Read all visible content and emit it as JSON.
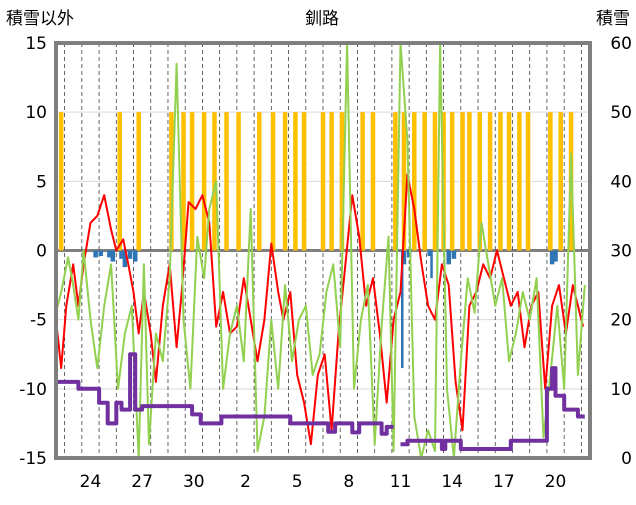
{
  "chart_data": {
    "type": "line",
    "title": "釧路",
    "left_axis": {
      "label": "積雪以外",
      "range": [
        -15,
        15
      ],
      "ticks": [
        "15",
        "10",
        "5",
        "0",
        "-5",
        "-10",
        "-15"
      ]
    },
    "right_axis": {
      "label": "積雪",
      "range": [
        0,
        60
      ],
      "ticks": [
        "60",
        "50",
        "40",
        "30",
        "20",
        "10",
        "0"
      ]
    },
    "x_range": [
      22,
      53
    ],
    "x_ticks": [
      {
        "x": 24,
        "label": "24"
      },
      {
        "x": 27,
        "label": "27"
      },
      {
        "x": 30,
        "label": "30"
      },
      {
        "x": 33,
        "label": "2"
      },
      {
        "x": 36,
        "label": "5"
      },
      {
        "x": 39,
        "label": "8"
      },
      {
        "x": 42,
        "label": "11"
      },
      {
        "x": 45,
        "label": "14"
      },
      {
        "x": 48,
        "label": "17"
      },
      {
        "x": 51,
        "label": "20"
      }
    ],
    "grid": {
      "horizontal_solid": true,
      "vertical_dashed": true
    },
    "colors": {
      "sunshine": "#ffc000",
      "precip": "#2e75b6",
      "temperature": "#ff0000",
      "wind": "#92d050",
      "snow_depth": "#7030a0",
      "frame": "#7f7f7f"
    },
    "series": [
      {
        "type": "bar",
        "axis": "left",
        "values": [
          [
            22.3,
            10
          ],
          [
            25.7,
            10
          ],
          [
            26.8,
            10
          ],
          [
            28.7,
            10
          ],
          [
            29.4,
            10
          ],
          [
            29.9,
            10
          ],
          [
            30.6,
            10
          ],
          [
            31.2,
            10
          ],
          [
            31.9,
            10
          ],
          [
            32.6,
            10
          ],
          [
            33.8,
            10
          ],
          [
            34.6,
            10
          ],
          [
            35.3,
            10
          ],
          [
            35.9,
            10
          ],
          [
            36.4,
            10
          ],
          [
            37.5,
            10
          ],
          [
            38.0,
            10
          ],
          [
            38.6,
            10
          ],
          [
            39.8,
            10
          ],
          [
            40.4,
            10
          ],
          [
            41.7,
            10
          ],
          [
            42.2,
            10
          ],
          [
            42.8,
            10
          ],
          [
            43.4,
            10
          ],
          [
            44.0,
            10
          ],
          [
            44.5,
            10
          ],
          [
            45.0,
            10
          ],
          [
            45.6,
            10
          ],
          [
            46.0,
            10
          ],
          [
            46.6,
            10
          ],
          [
            47.2,
            10
          ],
          [
            47.8,
            10
          ],
          [
            48.3,
            10
          ],
          [
            48.9,
            10
          ],
          [
            49.4,
            10
          ],
          [
            50.7,
            10
          ],
          [
            51.3,
            10
          ],
          [
            51.9,
            10
          ]
        ]
      },
      {
        "type": "bar",
        "axis": "left",
        "values": [
          [
            24.3,
            -0.5
          ],
          [
            24.6,
            -0.4
          ],
          [
            25.1,
            -0.5
          ],
          [
            25.3,
            -0.8
          ],
          [
            25.8,
            -0.6
          ],
          [
            26.0,
            -1.2
          ],
          [
            26.3,
            -0.6
          ],
          [
            26.6,
            -0.8
          ],
          [
            42.2,
            -1
          ],
          [
            42.5,
            -0.5
          ],
          [
            43.7,
            -0.4
          ],
          [
            44.8,
            -1
          ],
          [
            45.1,
            -0.6
          ],
          [
            50.8,
            -1
          ],
          [
            51.0,
            -0.8
          ]
        ]
      },
      {
        "type": "bar",
        "axis": "left",
        "values": [
          [
            42.1,
            -8.5
          ],
          [
            43.8,
            -2
          ]
        ]
      },
      {
        "type": "line",
        "axis": "left",
        "values": [
          [
            22.0,
            -5
          ],
          [
            22.3,
            -8.5
          ],
          [
            22.6,
            -4
          ],
          [
            23.0,
            -1
          ],
          [
            23.3,
            -4
          ],
          [
            23.6,
            -1
          ],
          [
            24.0,
            2
          ],
          [
            24.4,
            2.5
          ],
          [
            24.8,
            4
          ],
          [
            25.2,
            1.5
          ],
          [
            25.5,
            0
          ],
          [
            25.9,
            0.8
          ],
          [
            26.2,
            -1
          ],
          [
            26.5,
            -3
          ],
          [
            26.8,
            -6
          ],
          [
            27.1,
            -3
          ],
          [
            27.5,
            -6
          ],
          [
            27.8,
            -9.5
          ],
          [
            28.2,
            -4
          ],
          [
            28.6,
            -1
          ],
          [
            29.0,
            -7
          ],
          [
            29.3,
            -3
          ],
          [
            29.7,
            3.5
          ],
          [
            30.1,
            3
          ],
          [
            30.5,
            4
          ],
          [
            30.9,
            2
          ],
          [
            31.3,
            -5.5
          ],
          [
            31.7,
            -3
          ],
          [
            32.1,
            -6
          ],
          [
            32.5,
            -5.5
          ],
          [
            32.9,
            -2
          ],
          [
            33.3,
            -5
          ],
          [
            33.7,
            -8
          ],
          [
            34.1,
            -5
          ],
          [
            34.5,
            0.5
          ],
          [
            34.9,
            -3
          ],
          [
            35.2,
            -5
          ],
          [
            35.6,
            -3
          ],
          [
            36.0,
            -9
          ],
          [
            36.4,
            -11
          ],
          [
            36.8,
            -14
          ],
          [
            37.2,
            -9
          ],
          [
            37.6,
            -7.5
          ],
          [
            38.0,
            -13
          ],
          [
            38.4,
            -6
          ],
          [
            38.8,
            -1
          ],
          [
            39.2,
            4
          ],
          [
            39.6,
            1
          ],
          [
            40.0,
            -4
          ],
          [
            40.4,
            -2
          ],
          [
            40.8,
            -6
          ],
          [
            41.2,
            -11
          ],
          [
            41.6,
            -5
          ],
          [
            42.0,
            -3
          ],
          [
            42.4,
            5.5
          ],
          [
            42.8,
            3
          ],
          [
            43.2,
            -0.8
          ],
          [
            43.6,
            -4
          ],
          [
            44.0,
            -5
          ],
          [
            44.4,
            -1
          ],
          [
            44.8,
            -2.5
          ],
          [
            45.2,
            -9.5
          ],
          [
            45.6,
            -13
          ],
          [
            46.0,
            -4
          ],
          [
            46.4,
            -3
          ],
          [
            46.8,
            -1
          ],
          [
            47.2,
            -2
          ],
          [
            47.6,
            0
          ],
          [
            48.0,
            -2
          ],
          [
            48.4,
            -4
          ],
          [
            48.8,
            -3
          ],
          [
            49.2,
            -7
          ],
          [
            49.6,
            -4
          ],
          [
            50.0,
            -3
          ],
          [
            50.4,
            -10
          ],
          [
            50.8,
            -4
          ],
          [
            51.2,
            -2.5
          ],
          [
            51.6,
            -6
          ],
          [
            52.0,
            -2.5
          ],
          [
            52.6,
            -5.5
          ]
        ]
      },
      {
        "type": "line",
        "axis": "left",
        "values": [
          [
            22.0,
            -4.5
          ],
          [
            22.3,
            -3
          ],
          [
            22.7,
            -0.5
          ],
          [
            23.0,
            -2.5
          ],
          [
            23.3,
            -5
          ],
          [
            23.6,
            0
          ],
          [
            24.0,
            -5
          ],
          [
            24.4,
            -8.5
          ],
          [
            24.8,
            -4
          ],
          [
            25.2,
            -1
          ],
          [
            25.6,
            -10
          ],
          [
            26.0,
            -6
          ],
          [
            26.4,
            -4
          ],
          [
            26.8,
            -15
          ],
          [
            27.1,
            -1
          ],
          [
            27.4,
            -14
          ],
          [
            27.8,
            -6
          ],
          [
            28.2,
            -8
          ],
          [
            28.6,
            -2
          ],
          [
            29.0,
            13.5
          ],
          [
            29.4,
            -5
          ],
          [
            29.8,
            -10
          ],
          [
            30.2,
            1
          ],
          [
            30.6,
            -2
          ],
          [
            30.9,
            3
          ],
          [
            31.3,
            5
          ],
          [
            31.7,
            -10
          ],
          [
            32.1,
            -6
          ],
          [
            32.5,
            -4
          ],
          [
            32.9,
            -8
          ],
          [
            33.3,
            3
          ],
          [
            33.7,
            -14.5
          ],
          [
            34.1,
            -12
          ],
          [
            34.5,
            -5
          ],
          [
            34.9,
            -10
          ],
          [
            35.3,
            -2.5
          ],
          [
            35.7,
            -8
          ],
          [
            36.1,
            -5
          ],
          [
            36.5,
            -4
          ],
          [
            36.9,
            -9
          ],
          [
            37.3,
            -7.5
          ],
          [
            37.7,
            -3
          ],
          [
            38.1,
            -1
          ],
          [
            38.5,
            -7
          ],
          [
            38.9,
            15
          ],
          [
            39.3,
            -10
          ],
          [
            39.7,
            -5
          ],
          [
            40.1,
            -2.5
          ],
          [
            40.5,
            -14
          ],
          [
            40.9,
            -5.5
          ],
          [
            41.3,
            1
          ],
          [
            41.6,
            -14.5
          ],
          [
            42.0,
            15
          ],
          [
            42.4,
            8
          ],
          [
            42.8,
            -12
          ],
          [
            43.2,
            -15
          ],
          [
            43.6,
            -13
          ],
          [
            44.0,
            -14.5
          ],
          [
            44.3,
            15
          ],
          [
            44.7,
            -10
          ],
          [
            45.1,
            -15
          ],
          [
            45.5,
            -8
          ],
          [
            45.9,
            -2
          ],
          [
            46.3,
            -4.5
          ],
          [
            46.7,
            2
          ],
          [
            47.1,
            -1
          ],
          [
            47.5,
            -4
          ],
          [
            47.9,
            -2
          ],
          [
            48.3,
            -8
          ],
          [
            48.7,
            -6
          ],
          [
            49.1,
            -3
          ],
          [
            49.5,
            -5
          ],
          [
            49.9,
            -2
          ],
          [
            50.3,
            -13.5
          ],
          [
            50.7,
            -9
          ],
          [
            51.1,
            -4
          ],
          [
            51.5,
            -10
          ],
          [
            51.9,
            7
          ],
          [
            52.3,
            -9
          ],
          [
            52.7,
            -2.5
          ]
        ]
      },
      {
        "type": "step",
        "axis": "right",
        "values": [
          [
            22.0,
            11
          ],
          [
            23.3,
            11
          ],
          [
            23.3,
            10
          ],
          [
            24.5,
            10
          ],
          [
            24.5,
            8
          ],
          [
            25.0,
            8
          ],
          [
            25.0,
            5
          ],
          [
            25.5,
            5
          ],
          [
            25.5,
            8
          ],
          [
            25.8,
            8
          ],
          [
            25.8,
            7
          ],
          [
            26.3,
            7
          ],
          [
            26.3,
            15
          ],
          [
            26.6,
            15
          ],
          [
            26.6,
            7
          ],
          [
            27.0,
            7
          ],
          [
            27.0,
            7.5
          ],
          [
            29.9,
            7.5
          ],
          [
            29.9,
            6.3
          ],
          [
            30.4,
            6.3
          ],
          [
            30.4,
            5
          ],
          [
            31.6,
            5
          ],
          [
            31.6,
            6
          ],
          [
            35.6,
            6
          ],
          [
            35.6,
            5
          ],
          [
            37.8,
            5
          ],
          [
            37.8,
            3.8
          ],
          [
            38.2,
            3.8
          ],
          [
            38.2,
            5
          ],
          [
            39.2,
            5
          ],
          [
            39.2,
            3.7
          ],
          [
            39.6,
            3.7
          ],
          [
            39.6,
            5
          ],
          [
            40.9,
            5
          ],
          [
            40.9,
            3.5
          ],
          [
            41.2,
            3.5
          ],
          [
            41.2,
            4.5
          ],
          [
            41.6,
            4.5
          ]
        ]
      },
      {
        "type": "step",
        "axis": "right",
        "values": [
          [
            42.0,
            2
          ],
          [
            42.4,
            2
          ],
          [
            42.4,
            2.5
          ],
          [
            44.4,
            2.5
          ],
          [
            44.4,
            1.3
          ],
          [
            44.6,
            1.3
          ],
          [
            44.6,
            2.5
          ],
          [
            45.5,
            2.5
          ],
          [
            45.5,
            1.3
          ],
          [
            48.4,
            1.3
          ],
          [
            48.4,
            2.5
          ],
          [
            50.5,
            2.5
          ],
          [
            50.5,
            10
          ],
          [
            50.8,
            10
          ],
          [
            50.8,
            13
          ],
          [
            51.0,
            13
          ],
          [
            51.0,
            9
          ],
          [
            51.5,
            9
          ],
          [
            51.5,
            7
          ],
          [
            52.3,
            7
          ],
          [
            52.3,
            6
          ],
          [
            52.7,
            6
          ]
        ]
      }
    ]
  }
}
